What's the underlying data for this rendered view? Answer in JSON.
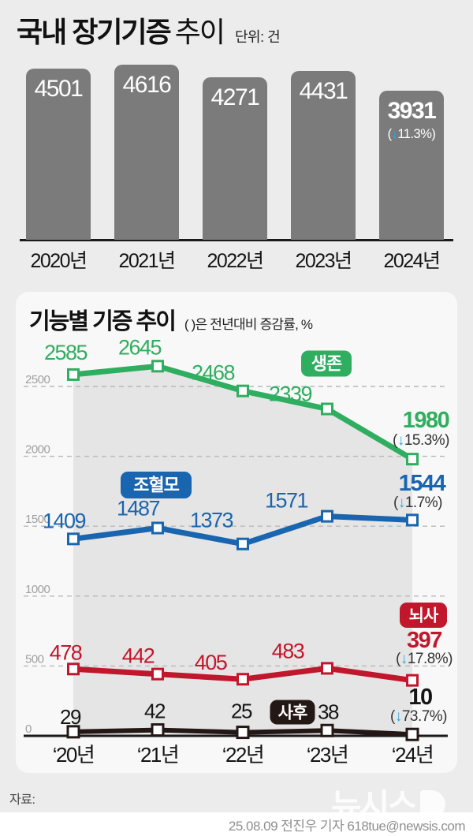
{
  "header": {
    "title_strong": "국내 장기기증",
    "title_light": "추이",
    "unit_label": "단위: 건"
  },
  "chart_data": [
    {
      "type": "bar",
      "title": "국내 장기기증 추이",
      "unit": "건",
      "categories": [
        "2020년",
        "2021년",
        "2022년",
        "2023년",
        "2024년"
      ],
      "values": [
        4501,
        4616,
        4271,
        4431,
        3931
      ],
      "last_change_label": "(↓11.3%)",
      "bar_color": "#7b7b7b",
      "value_label_color": "#ffffff"
    },
    {
      "type": "line",
      "title": "기능별 기증 추이",
      "subtitle": "( )은 전년대비 증감률, %",
      "categories": [
        "‘20년",
        "‘21년",
        "‘22년",
        "‘23년",
        "‘24년"
      ],
      "y_ticks": [
        0,
        500,
        1000,
        1500,
        2000,
        2500
      ],
      "ylim": [
        0,
        2800
      ],
      "grid": "horizontal-dashed",
      "legend": "inline-badges",
      "arrow_color": "#2ba9e1",
      "series": [
        {
          "name": "생존",
          "color": "#2fae60",
          "values": [
            2585,
            2645,
            2468,
            2339,
            1980
          ],
          "change_label": "(↓15.3%)"
        },
        {
          "name": "조혈모",
          "color": "#1a65af",
          "values": [
            1409,
            1487,
            1373,
            1571,
            1544
          ],
          "change_label": "(↓1.7%)"
        },
        {
          "name": "뇌사",
          "color": "#c1172c",
          "values": [
            478,
            442,
            405,
            483,
            397
          ],
          "change_label": "(↓17.8%)"
        },
        {
          "name": "사후",
          "color": "#231815",
          "values": [
            29,
            42,
            25,
            38,
            10
          ],
          "change_label": "(↓73.7%)"
        }
      ]
    }
  ],
  "footer": {
    "source_label": "자료:",
    "byline": "25.08.09 전진우 기자 618tue@newsis.com",
    "watermark": "뉴시스"
  }
}
